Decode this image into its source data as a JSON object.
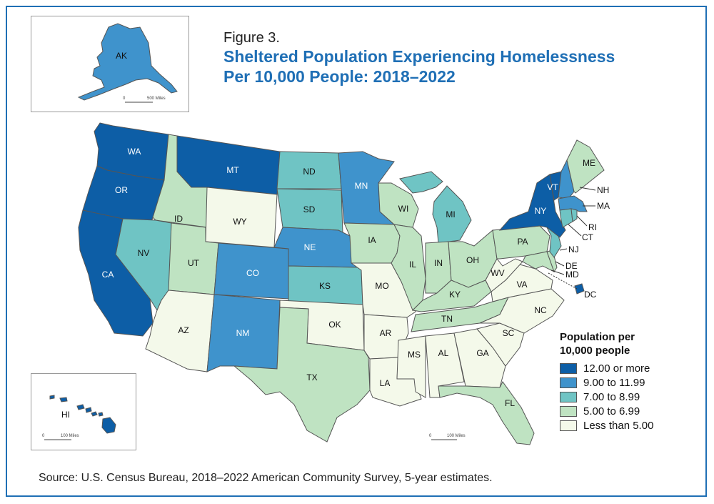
{
  "figure_label": "Figure 3.",
  "title_line1": "Sheltered Population Experiencing Homelessness",
  "title_line2": "Per 10,000 People: 2018–2022",
  "source": "Source: U.S. Census Bureau, 2018–2022 American Community Survey, 5-year estimates.",
  "legend": {
    "title_line1": "Population per",
    "title_line2": "10,000 people",
    "items": [
      {
        "label": "12.00 or more",
        "color": "#0d5ea6"
      },
      {
        "label": "9.00 to 11.99",
        "color": "#3f93cc"
      },
      {
        "label": "7.00 to 8.99",
        "color": "#6fc4c4"
      },
      {
        "label": "5.00 to 6.99",
        "color": "#bfe3c2"
      },
      {
        "label": "Less than 5.00",
        "color": "#f4f9ea"
      }
    ]
  },
  "scale_bars": {
    "alaska": {
      "zero": "0",
      "label": "500 Miles"
    },
    "hawaii": {
      "zero": "0",
      "label": "100 Miles"
    },
    "conus": {
      "zero": "0",
      "label": "100 Miles"
    }
  },
  "states": [
    {
      "abbr": "WA",
      "class": 0
    },
    {
      "abbr": "OR",
      "class": 0
    },
    {
      "abbr": "CA",
      "class": 0
    },
    {
      "abbr": "MT",
      "class": 0
    },
    {
      "abbr": "NY",
      "class": 0
    },
    {
      "abbr": "VT",
      "class": 0
    },
    {
      "abbr": "DC",
      "class": 0
    },
    {
      "abbr": "HI",
      "class": 0
    },
    {
      "abbr": "MN",
      "class": 1
    },
    {
      "abbr": "NE",
      "class": 1
    },
    {
      "abbr": "CO",
      "class": 1
    },
    {
      "abbr": "NM",
      "class": 1
    },
    {
      "abbr": "AK",
      "class": 1
    },
    {
      "abbr": "NH",
      "class": 1
    },
    {
      "abbr": "MA",
      "class": 1
    },
    {
      "abbr": "ND",
      "class": 2
    },
    {
      "abbr": "SD",
      "class": 2
    },
    {
      "abbr": "KS",
      "class": 2
    },
    {
      "abbr": "NV",
      "class": 2
    },
    {
      "abbr": "MI",
      "class": 2
    },
    {
      "abbr": "NJ",
      "class": 2
    },
    {
      "abbr": "RI",
      "class": 2
    },
    {
      "abbr": "CT",
      "class": 2
    },
    {
      "abbr": "ID",
      "class": 3
    },
    {
      "abbr": "UT",
      "class": 3
    },
    {
      "abbr": "TX",
      "class": 3
    },
    {
      "abbr": "IA",
      "class": 3
    },
    {
      "abbr": "WI",
      "class": 3
    },
    {
      "abbr": "IL",
      "class": 3
    },
    {
      "abbr": "IN",
      "class": 3
    },
    {
      "abbr": "OH",
      "class": 3
    },
    {
      "abbr": "PA",
      "class": 3
    },
    {
      "abbr": "KY",
      "class": 3
    },
    {
      "abbr": "TN",
      "class": 3
    },
    {
      "abbr": "FL",
      "class": 3
    },
    {
      "abbr": "ME",
      "class": 3
    },
    {
      "abbr": "DE",
      "class": 3
    },
    {
      "abbr": "MD",
      "class": 3
    },
    {
      "abbr": "WY",
      "class": 4
    },
    {
      "abbr": "AZ",
      "class": 4
    },
    {
      "abbr": "OK",
      "class": 4
    },
    {
      "abbr": "MO",
      "class": 4
    },
    {
      "abbr": "AR",
      "class": 4
    },
    {
      "abbr": "LA",
      "class": 4
    },
    {
      "abbr": "MS",
      "class": 4
    },
    {
      "abbr": "AL",
      "class": 4
    },
    {
      "abbr": "GA",
      "class": 4
    },
    {
      "abbr": "SC",
      "class": 4
    },
    {
      "abbr": "NC",
      "class": 4
    },
    {
      "abbr": "VA",
      "class": 4
    },
    {
      "abbr": "WV",
      "class": 4
    }
  ]
}
